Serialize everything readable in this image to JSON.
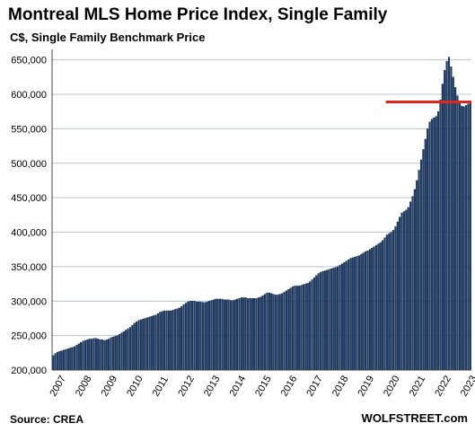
{
  "chart_data": {
    "type": "bar",
    "title": "Montreal MLS Home Price Index, Single Family",
    "subtitle": "C$, Single Family Benchmark Price",
    "xlabel": "",
    "ylabel": "",
    "ylim": [
      200000,
      660000
    ],
    "yticks": [
      200000,
      250000,
      300000,
      350000,
      400000,
      450000,
      500000,
      550000,
      600000,
      650000
    ],
    "ytick_labels": [
      "200,000",
      "250,000",
      "300,000",
      "350,000",
      "400,000",
      "450,000",
      "500,000",
      "550,000",
      "600,000",
      "650,000"
    ],
    "xtick_labels": [
      "2007",
      "2008",
      "2009",
      "2010",
      "2011",
      "2012",
      "2013",
      "2014",
      "2015",
      "2016",
      "2017",
      "2018",
      "2019",
      "2020",
      "2021",
      "2022",
      "2023"
    ],
    "grid": true,
    "bar_color": "#1f3f6e",
    "reference_line": {
      "value": 589000,
      "start_year": 2020,
      "color": "#e0251b"
    },
    "start_year": 2007,
    "annual": [
      {
        "year": 2007,
        "values": [
          221000,
          224000,
          226000,
          227000,
          228000,
          229000,
          230000,
          231000,
          232000,
          233000,
          234000,
          236000
        ]
      },
      {
        "year": 2008,
        "values": [
          238000,
          240000,
          242000,
          243000,
          244000,
          245000,
          245000,
          246000,
          246000,
          245000,
          244000,
          244000
        ]
      },
      {
        "year": 2009,
        "values": [
          243000,
          244000,
          245000,
          247000,
          248000,
          249000,
          250000,
          252000,
          254000,
          256000,
          258000,
          260000
        ]
      },
      {
        "year": 2010,
        "values": [
          262000,
          265000,
          268000,
          270000,
          272000,
          273000,
          274000,
          275000,
          276000,
          277000,
          278000,
          279000
        ]
      },
      {
        "year": 2011,
        "values": [
          280000,
          282000,
          284000,
          285000,
          286000,
          286000,
          286000,
          286000,
          287000,
          288000,
          289000,
          290000
        ]
      },
      {
        "year": 2012,
        "values": [
          292000,
          295000,
          297000,
          299000,
          300000,
          300000,
          300000,
          299000,
          299000,
          299000,
          298000,
          298000
        ]
      },
      {
        "year": 2013,
        "values": [
          299000,
          300000,
          301000,
          302000,
          303000,
          303000,
          303000,
          303000,
          302000,
          302000,
          302000,
          301000
        ]
      },
      {
        "year": 2014,
        "values": [
          301000,
          302000,
          303000,
          304000,
          305000,
          305000,
          305000,
          304000,
          304000,
          304000,
          304000,
          304000
        ]
      },
      {
        "year": 2015,
        "values": [
          305000,
          306000,
          308000,
          310000,
          312000,
          312000,
          311000,
          310000,
          309000,
          309000,
          310000,
          311000
        ]
      },
      {
        "year": 2016,
        "values": [
          313000,
          315000,
          317000,
          319000,
          321000,
          322000,
          322000,
          322000,
          323000,
          324000,
          325000,
          326000
        ]
      },
      {
        "year": 2017,
        "values": [
          328000,
          331000,
          334000,
          337000,
          340000,
          342000,
          343000,
          344000,
          345000,
          346000,
          347000,
          348000
        ]
      },
      {
        "year": 2018,
        "values": [
          349000,
          350000,
          352000,
          354000,
          356000,
          358000,
          360000,
          362000,
          363000,
          364000,
          365000,
          366000
        ]
      },
      {
        "year": 2019,
        "values": [
          368000,
          370000,
          372000,
          373000,
          375000,
          377000,
          379000,
          381000,
          383000,
          385000,
          388000,
          392000
        ]
      },
      {
        "year": 2020,
        "values": [
          396000,
          398000,
          400000,
          403000,
          408000,
          415000,
          422000,
          428000,
          430000,
          432000,
          436000,
          444000
        ]
      },
      {
        "year": 2021,
        "values": [
          452000,
          462000,
          475000,
          490000,
          505000,
          520000,
          535000,
          550000,
          560000,
          564000,
          566000,
          568000
        ]
      },
      {
        "year": 2022,
        "values": [
          575000,
          592000,
          615000,
          635000,
          648000,
          654000,
          640000,
          625000,
          610000,
          598000,
          590000,
          583000
        ]
      },
      {
        "year": 2023,
        "values": [
          582000,
          584000,
          586000,
          588000
        ]
      }
    ]
  },
  "source": "Source: CREA",
  "brand": "WOLFSTREET.com"
}
